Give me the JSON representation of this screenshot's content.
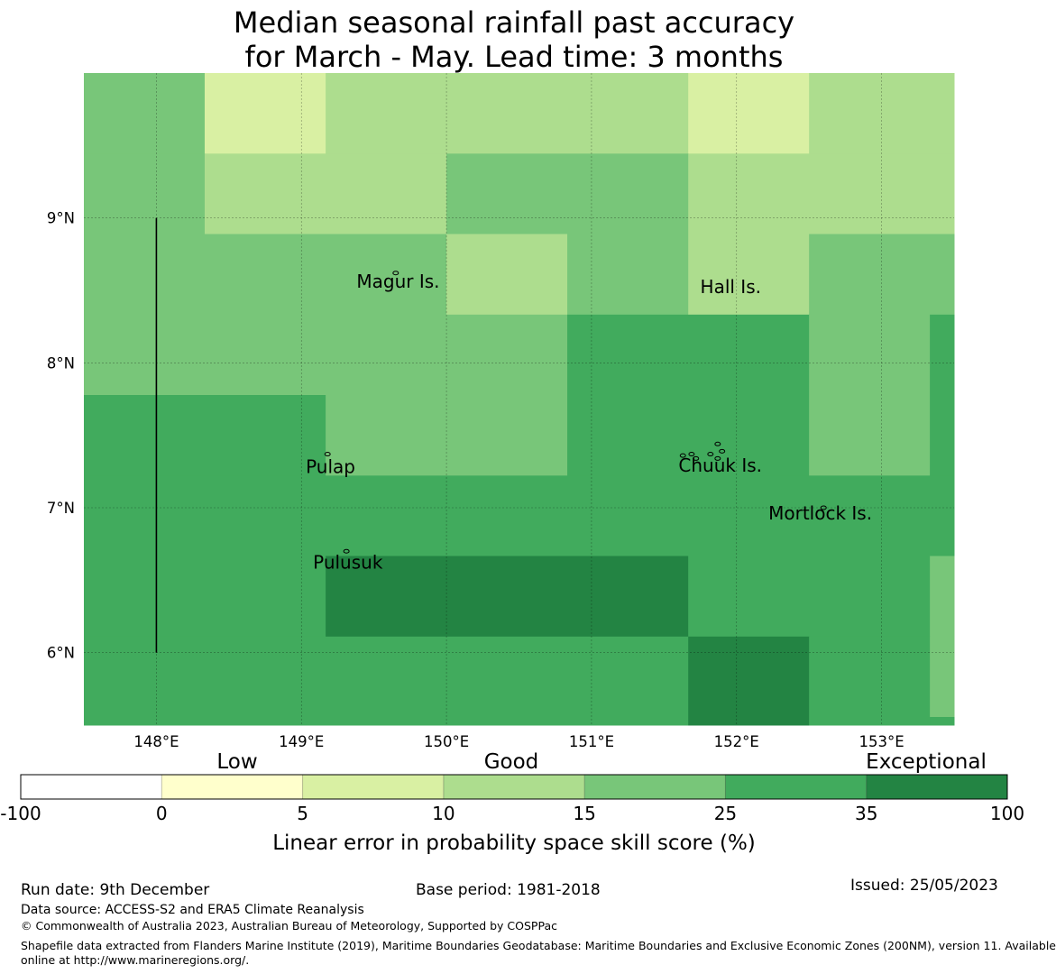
{
  "title": {
    "line1": "Median seasonal rainfall past accuracy",
    "line2": "for March - May. Lead time: 3 months"
  },
  "map": {
    "lon_range": [
      147.5,
      153.5
    ],
    "lat_range": [
      5.5,
      10.0
    ],
    "lon_ticks": [
      148,
      149,
      150,
      151,
      152,
      153
    ],
    "lon_tick_labels": [
      "148°E",
      "149°E",
      "150°E",
      "151°E",
      "152°E",
      "153°E"
    ],
    "lat_ticks": [
      6,
      7,
      8,
      9
    ],
    "lat_tick_labels": [
      "6°N",
      "7°N",
      "8°N",
      "9°N"
    ],
    "grid_cells": [
      {
        "lon0": 147.5,
        "lon1": 148.333,
        "lat0": 9.444,
        "lat1": 10.0,
        "value": 20
      },
      {
        "lon0": 148.333,
        "lon1": 149.167,
        "lat0": 9.444,
        "lat1": 10.0,
        "value": 7
      },
      {
        "lon0": 149.167,
        "lon1": 151.667,
        "lat0": 9.444,
        "lat1": 10.0,
        "value": 12
      },
      {
        "lon0": 151.667,
        "lon1": 152.5,
        "lat0": 9.444,
        "lat1": 10.0,
        "value": 7
      },
      {
        "lon0": 152.5,
        "lon1": 153.5,
        "lat0": 9.444,
        "lat1": 10.0,
        "value": 12
      },
      {
        "lon0": 147.5,
        "lon1": 148.333,
        "lat0": 8.889,
        "lat1": 9.444,
        "value": 20
      },
      {
        "lon0": 148.333,
        "lon1": 150.0,
        "lat0": 8.889,
        "lat1": 9.444,
        "value": 12
      },
      {
        "lon0": 150.0,
        "lon1": 151.667,
        "lat0": 8.889,
        "lat1": 9.444,
        "value": 20
      },
      {
        "lon0": 151.667,
        "lon1": 153.5,
        "lat0": 8.889,
        "lat1": 9.444,
        "value": 12
      },
      {
        "lon0": 147.5,
        "lon1": 150.0,
        "lat0": 8.333,
        "lat1": 8.889,
        "value": 20
      },
      {
        "lon0": 150.0,
        "lon1": 150.833,
        "lat0": 8.333,
        "lat1": 8.889,
        "value": 12
      },
      {
        "lon0": 150.833,
        "lon1": 151.667,
        "lat0": 8.333,
        "lat1": 8.889,
        "value": 20
      },
      {
        "lon0": 151.667,
        "lon1": 152.5,
        "lat0": 8.333,
        "lat1": 8.889,
        "value": 12
      },
      {
        "lon0": 152.5,
        "lon1": 153.5,
        "lat0": 8.333,
        "lat1": 8.889,
        "value": 20
      },
      {
        "lon0": 147.5,
        "lon1": 150.833,
        "lat0": 7.778,
        "lat1": 8.333,
        "value": 20
      },
      {
        "lon0": 150.833,
        "lon1": 152.5,
        "lat0": 7.778,
        "lat1": 8.333,
        "value": 30
      },
      {
        "lon0": 152.5,
        "lon1": 153.333,
        "lat0": 7.778,
        "lat1": 8.333,
        "value": 20
      },
      {
        "lon0": 153.333,
        "lon1": 153.5,
        "lat0": 7.778,
        "lat1": 8.333,
        "value": 30
      },
      {
        "lon0": 147.5,
        "lon1": 149.167,
        "lat0": 7.222,
        "lat1": 7.778,
        "value": 30
      },
      {
        "lon0": 149.167,
        "lon1": 150.833,
        "lat0": 7.222,
        "lat1": 7.778,
        "value": 20
      },
      {
        "lon0": 150.833,
        "lon1": 152.5,
        "lat0": 7.222,
        "lat1": 7.778,
        "value": 30
      },
      {
        "lon0": 152.5,
        "lon1": 153.333,
        "lat0": 7.222,
        "lat1": 7.778,
        "value": 20
      },
      {
        "lon0": 153.333,
        "lon1": 153.5,
        "lat0": 7.222,
        "lat1": 7.778,
        "value": 30
      },
      {
        "lon0": 147.5,
        "lon1": 153.5,
        "lat0": 6.667,
        "lat1": 7.222,
        "value": 30
      },
      {
        "lon0": 147.5,
        "lon1": 149.167,
        "lat0": 6.111,
        "lat1": 6.667,
        "value": 30
      },
      {
        "lon0": 149.167,
        "lon1": 151.667,
        "lat0": 6.111,
        "lat1": 6.667,
        "value": 50
      },
      {
        "lon0": 151.667,
        "lon1": 153.333,
        "lat0": 6.111,
        "lat1": 6.667,
        "value": 30
      },
      {
        "lon0": 153.333,
        "lon1": 153.5,
        "lat0": 6.111,
        "lat1": 6.667,
        "value": 20
      },
      {
        "lon0": 147.5,
        "lon1": 151.667,
        "lat0": 5.5,
        "lat1": 6.111,
        "value": 30
      },
      {
        "lon0": 151.667,
        "lon1": 152.5,
        "lat0": 5.5,
        "lat1": 6.111,
        "value": 50
      },
      {
        "lon0": 152.5,
        "lon1": 153.333,
        "lat0": 5.5,
        "lat1": 6.111,
        "value": 30
      },
      {
        "lon0": 153.333,
        "lon1": 153.5,
        "lat0": 5.556,
        "lat1": 6.111,
        "value": 20
      },
      {
        "lon0": 153.333,
        "lon1": 153.5,
        "lat0": 5.5,
        "lat1": 5.556,
        "value": 30
      }
    ],
    "boundary_line": {
      "lon": 148.0,
      "lat0": 6.0,
      "lat1": 9.0
    },
    "places": [
      {
        "name": "Magur Is.",
        "lon": 149.38,
        "lat": 8.52
      },
      {
        "name": "Hall Is.",
        "lon": 151.75,
        "lat": 8.48
      },
      {
        "name": "Pulap",
        "lon": 149.03,
        "lat": 7.24
      },
      {
        "name": "Chuuk Is.",
        "lon": 151.6,
        "lat": 7.25
      },
      {
        "name": "Mortlock Is.",
        "lon": 152.22,
        "lat": 6.92
      },
      {
        "name": "Pulusuk",
        "lon": 149.08,
        "lat": 6.58
      }
    ],
    "islands": [
      {
        "lon": 149.65,
        "lat": 8.62
      },
      {
        "lon": 149.18,
        "lat": 7.37
      },
      {
        "lon": 149.31,
        "lat": 6.7
      },
      {
        "lon": 151.63,
        "lat": 7.36
      },
      {
        "lon": 151.69,
        "lat": 7.37
      },
      {
        "lon": 151.72,
        "lat": 7.34
      },
      {
        "lon": 151.82,
        "lat": 7.37
      },
      {
        "lon": 151.87,
        "lat": 7.44
      },
      {
        "lon": 151.87,
        "lat": 7.34
      },
      {
        "lon": 151.9,
        "lat": 7.39
      },
      {
        "lon": 152.6,
        "lat": 7.0
      }
    ]
  },
  "legend": {
    "category_labels": [
      "Low",
      "Good",
      "Exceptional"
    ],
    "tick_labels": [
      "-100",
      "0",
      "5",
      "10",
      "15",
      "25",
      "35",
      "100"
    ],
    "bounds": [
      -100,
      0,
      5,
      10,
      15,
      25,
      35,
      100
    ],
    "colors": [
      "#ffffff",
      "#ffffcc",
      "#d9f0a3",
      "#addd8e",
      "#78c679",
      "#41ab5d",
      "#238443"
    ],
    "axis_label": "Linear error in probability space skill score (%)"
  },
  "footer": {
    "run_date": "Run date: 9th December",
    "base_period": "Base period: 1981-2018",
    "issued": "Issued: 25/05/2023",
    "data_source": "Data source: ACCESS-S2 and ERA5 Climate Reanalysis",
    "copyright": "© Commonwealth of Australia 2023, Australian Bureau of Meteorology, Supported by COSPPac",
    "shapefile_line1": "Shapefile data extracted from Flanders Marine Institute (2019), Maritime Boundaries Geodatabase: Maritime Boundaries and Exclusive Economic Zones (200NM), version 11. Available",
    "shapefile_line2": "online at http://www.marineregions.org/."
  }
}
